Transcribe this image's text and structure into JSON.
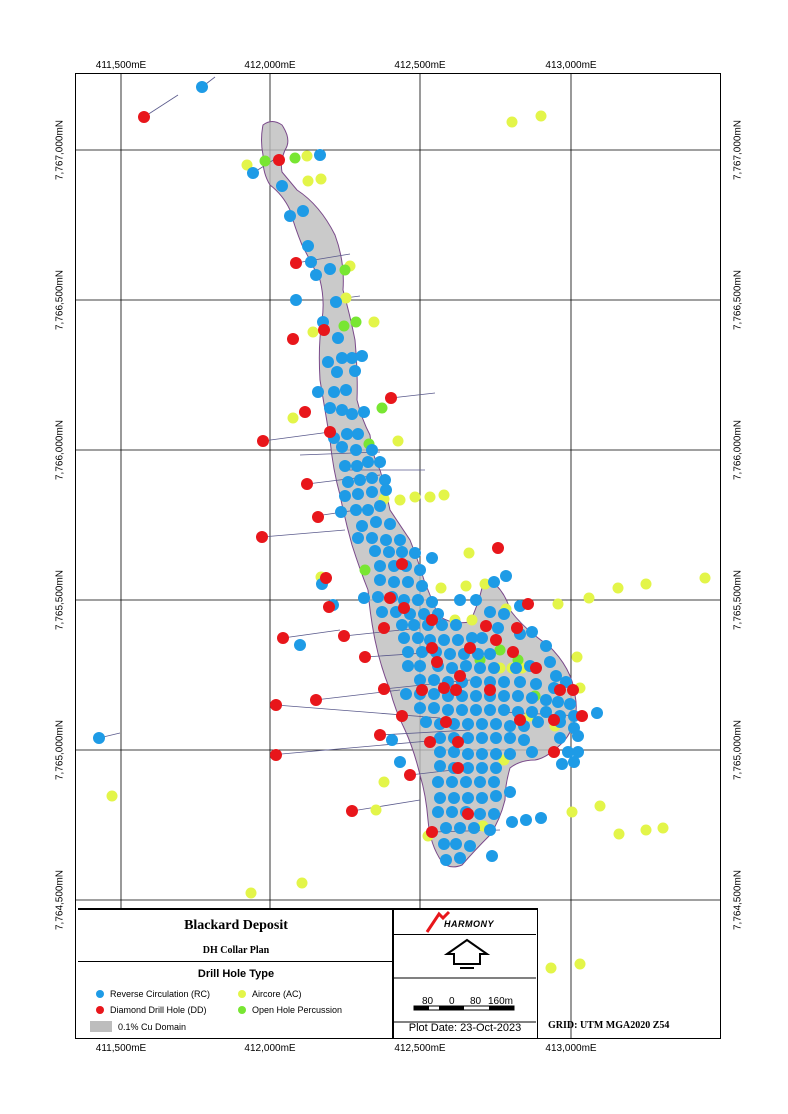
{
  "map": {
    "x_labels": [
      "411,500mE",
      "412,000mE",
      "412,500mE",
      "413,000mE"
    ],
    "y_labels": [
      "7,767,000mN",
      "7,766,500mN",
      "7,766,000mN",
      "7,765,500mN",
      "7,765,000mN",
      "7,764,500mN"
    ]
  },
  "legend": {
    "title": "Blackard Deposit",
    "subtitle": "DH Collar Plan",
    "section_title": "Drill Hole Type",
    "items": [
      {
        "label": "Reverse Circulation (RC)",
        "color": "#1e9be6"
      },
      {
        "label": "Aircore (AC)",
        "color": "#e3f549"
      },
      {
        "label": "Diamond Drill Hole (DD)",
        "color": "#e8161b"
      },
      {
        "label": "Open Hole Percussion",
        "color": "#78e632"
      },
      {
        "label": "0.1% Cu Domain",
        "color": "#bdbdbd"
      }
    ]
  },
  "logo": {
    "text": "HARMONY"
  },
  "scale": {
    "l1": "80",
    "l2": "0",
    "l3": "80",
    "l4": "160m"
  },
  "plot_date": "Plot Date: 23-Oct-2023",
  "grid": "GRID: UTM MGA2020 Z54",
  "colors": {
    "rc": "#1e9be6",
    "dd": "#e8161b",
    "ac": "#e3f549",
    "ohp": "#78e632",
    "domain": "#bdbdbd",
    "trace": "#5a5a8c"
  }
}
